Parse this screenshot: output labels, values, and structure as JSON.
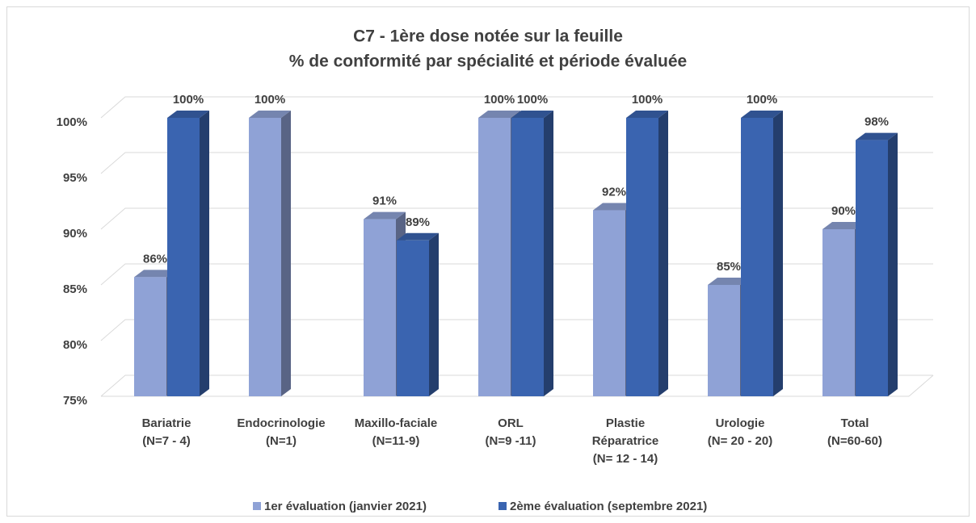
{
  "chart_data": {
    "type": "bar3d",
    "title": "C7 - 1ère dose notée sur la feuille",
    "subtitle": "% de conformité par spécialité et période évaluée",
    "categories": [
      [
        "Bariatrie",
        "(N=7 - 4)"
      ],
      [
        "Endocrinologie",
        "(N=1)"
      ],
      [
        "Maxillo-faciale",
        "(N=11-9)"
      ],
      [
        "ORL",
        "(N=9 -11)"
      ],
      [
        "Plastie",
        "Réparatrice",
        "(N= 12 - 14)"
      ],
      [
        "Urologie",
        "(N= 20 - 20)"
      ],
      [
        "Total",
        "(N=60-60)"
      ]
    ],
    "series": [
      {
        "name": "1er évaluation (janvier 2021)",
        "color": "#8fa2d6",
        "values": [
          85.7,
          100,
          90.9,
          100,
          91.7,
          85,
          90
        ],
        "value_labels": [
          "86%",
          "100%",
          "91%",
          "100%",
          "92%",
          "85%",
          "90%"
        ]
      },
      {
        "name": "2ème évaluation (septembre 2021)",
        "color": "#3a64b0",
        "values": [
          100,
          null,
          89,
          100,
          100,
          100,
          98
        ],
        "value_labels": [
          "100%",
          null,
          "89%",
          "100%",
          "100%",
          "100%",
          "98%"
        ]
      }
    ],
    "ylim": [
      75,
      100
    ],
    "yticks": [
      {
        "value": 75,
        "label": "75%"
      },
      {
        "value": 80,
        "label": "80%"
      },
      {
        "value": 85,
        "label": "85%"
      },
      {
        "value": 90,
        "label": "90%"
      },
      {
        "value": 95,
        "label": "95%"
      },
      {
        "value": 100,
        "label": "100%"
      }
    ],
    "grid": true,
    "legend": "bottom"
  }
}
